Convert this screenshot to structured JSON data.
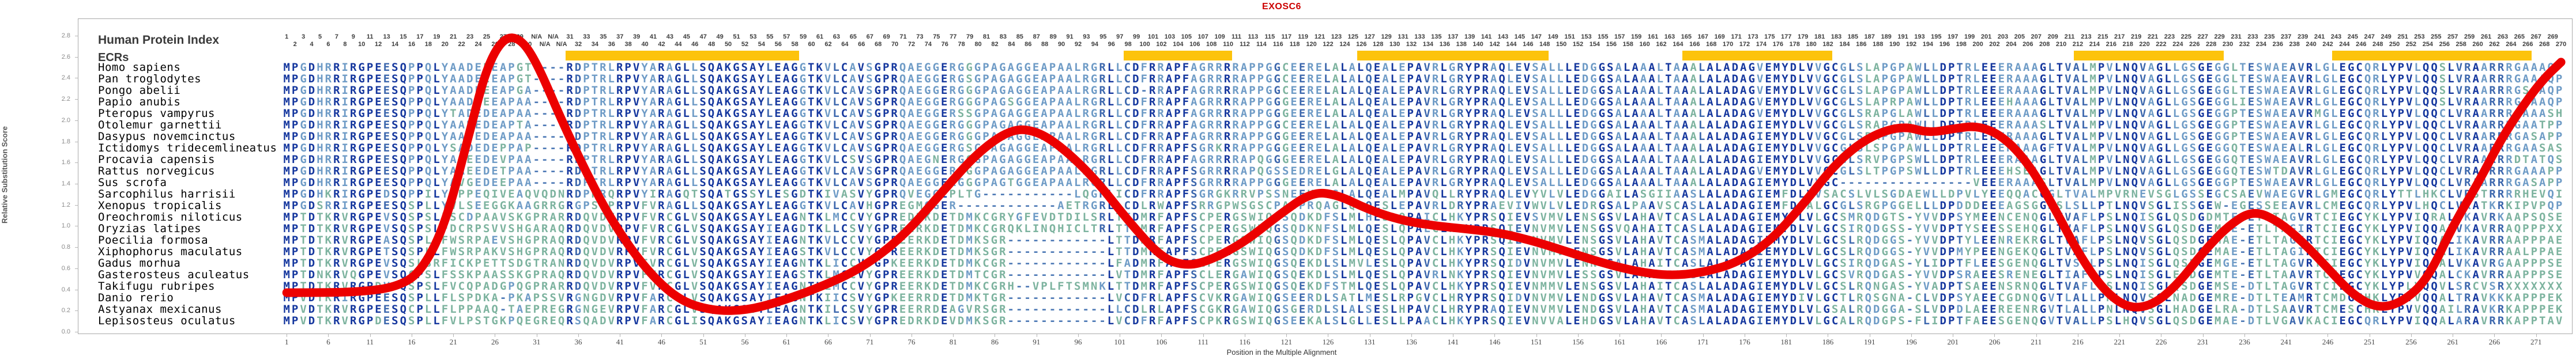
{
  "title": "EXOSC6",
  "header": {
    "panel_label": "Human Protein Index",
    "ecr_label": "ECRs"
  },
  "axes": {
    "y_label": "Relative Substitution Score",
    "y_ticks": [
      "0.0",
      "0.2",
      "0.4",
      "0.6",
      "0.8",
      "1.0",
      "1.2",
      "1.4",
      "1.6",
      "1.8",
      "2.0",
      "2.2",
      "2.4",
      "2.6",
      "2.8"
    ],
    "x_label": "Position in the Multiple Alignment",
    "x_ticks": [
      1,
      6,
      11,
      16,
      21,
      26,
      31,
      36,
      41,
      46,
      51,
      56,
      61,
      66,
      71,
      76,
      81,
      86,
      91,
      96,
      101,
      106,
      111,
      116,
      121,
      126,
      131,
      136,
      141,
      146,
      151,
      156,
      161,
      166,
      171,
      176,
      181,
      186,
      191,
      196,
      201,
      206,
      211,
      216,
      221,
      226,
      231,
      236,
      241,
      246,
      251,
      256,
      261,
      266,
      271
    ]
  },
  "colors": {
    "title": "#cc0000",
    "curve": "#ec0000",
    "ecr": "#fdc30b",
    "seq_dark": "#15379e",
    "seq_mid": "#3c67ad",
    "seq_light": "#6e9bc6",
    "seq_green": "#7db39f"
  },
  "alignment": {
    "num_columns": 274,
    "human_gap_columns": [
      31,
      32,
      33,
      34
    ],
    "column_label_rule": {
      "first": 1,
      "na_after": 30,
      "na_count": 4,
      "last": 270
    },
    "ecr_segments": [
      [
        35,
        62
      ],
      [
        102,
        114
      ],
      [
        130,
        152
      ],
      [
        169,
        186
      ],
      [
        216,
        233
      ],
      [
        247,
        270
      ]
    ],
    "rows": [
      {
        "species": "Homo sapiens",
        "seq": "MPGDHRRIRGPEESQPPQLYAADEEEAPGT----RDPTRLRPVYARAGLLSQAKGSAYLEAGGTKVLCAVSGPRQAEGGERGGGPAGAGGEAPAALRGRLLCDFRRAPFAGRRRRAPPGGCEERELALALQEALEPAVRLGRYPRAQLEVSALLLEDGGSALAAALTAAALALADAGVEMYDLVVGCGLSLAPGPAWLLDPTRLEEERAAAGLTVALMPVLNQVAGLLGSGEGGLTESWAEAVRLGLEGCQRLYPVLQQSLVRAARRRGAAAQP"
      },
      {
        "species": "Pan troglodytes",
        "seq": "MPGDHRRIRGPEESQPPQLYAADEEEAPGT----RDPTRLRPVYARAGLLSQAKGSAYLEAGGTKVLCAVSGPRQAEGGERGSGPAGAGGEAPAALRGRLLCDFRRAPFAGRRRRAPPGGCEERELALALQEALEPAVRLGRYPRAQLEVSALLLEDGGSALAAALTAAALALADAGVEMYDLVVGCGLSLAPGPAWLLDPTRLEEERAAAGLTVALMPVLNQVAGLLGSGEGGLTESWAEAVRLGLEGCQRLYPVLQQSLVRAARRRGAAAQP"
      },
      {
        "species": "Pongo abelii",
        "seq": "MPGDHRRIRGPEESQPPQLYAADEEEAPGA----RDPTRLRPVYARAGLLSQAKGSAYLEAGGTKVLCAVSGPRQAEGGERGGGPAGAGGEAPAALRGRLLCD-RRAPFAGRRRRAPPGGCEERELALALQEALEPAVRLGRYPRAQLEVSALLLEDGGSALAAALTAAALALADAGVEMYDLVVGCGLSLAPGPAWLLDPTRLEEERAAAGLTVALMPVLNQVAGLLGSGEGGLTESWAEAVRLGLEGCQRLYPVLQQSLVRAARRRGSAAQP"
      },
      {
        "species": "Papio anubis",
        "seq": "MPGDHRRIRGPEESQPPQLYAADEEEAPAA----RDPTRLRPVYARAGLLSQAKGSAYLEAGGTKVLCAVSGPRQAEGGERGGGPAGSGGEAPAALRGRLLCDFRRAPFAGRRRRAPPGGGEERELALALQEALEPAVRLGRYPRAQLEVSALLLEDGGSALAAALTAAALALADAGVEMYDLVVGCGLSLAPRPAWLLDPTRLEEEHAAAGLTVALMPVLNQVAGLLGSGEGGLIESWAEAVRLGLEGCQRLYPVLQQSLVRAARRRGAAAQP"
      },
      {
        "species": "Pteropus vampyrus",
        "seq": "MPGDHRRIRGPEESQPPQLYTADEDEAPAA----RDPTRLRPVYARAGLLSQAKGSAYLEAGGTKVLCAVSGPRQAEGGERSSGPAGAGGEAPAALRGRLLCDFRRAPFAGRRRRAPPGGGEERELALALQEALEPAVRLGRYPRAQLEVSALLLEDGGSALAAALTAAALALADAGVEMYDLVVGCGLSRAPGLAWLLDPTRLEEERAAAGLTVALMPVLNQVAGLLGSGEGGPTESWAEAVRMGLEGCQRLYPVLQQCLVRAARRRGAAASH"
      },
      {
        "species": "Otolemur garnettii",
        "seq": "MPGDHRRIRGPEESQPPQLYAADEDEAPTA----RDPTRLRPVYARAGLLSQAKGSAYLEAGGTKVLCAVSGPRQAEGGERGGGPAGAGGEAPAALRGRLLCDFRRAPFAGRRRRAPPGGCEERELALALQEALEPAVRLGRYPRAQLEVSALLLEDGGSALAAALTAAALALADAGIEMYDLVVGCGLSRAPGPAWLLDPTRLEEERAAASLTVALMPVLNQVAGLLGSGEGGPTESWAEAVRLGLEGCQRLYPVLQQCLVRAARRRGAATPP"
      },
      {
        "species": "Dasypus novemcinctus",
        "seq": "MPGDHRRIRGPEESQPPQLYAADEDEAPAA----RDPTRLRPVYARAGLLSQAKGSAYLEAGGTKVLCAVSGPRQAEGGERGGGPAGAGGEAPAALRGRLLCDFRRAPFAGRRRRAPPGGGEERELALALQEALEPAVRLGRYPRAQLEVSALLLEDGGSALAAALTAAALALADAGIEMYDLVVGCGLSRAPGPAWLLDPTRLEEERAAAGLTVALMPVLNQVAGLLGSGEGGPTESWAEAVRLGLEGCQRLYPVLQQCLVRAARRRGASAPP"
      },
      {
        "species": "Ictidomys tridecemlineatus",
        "seq": "MPGDHRRIRGPEESQPPQLYSADEDEPPAP----RDPTRLRPVYARAGLLSQAKGSAYLEAGGTKVLCAVSGPRQAEGGERGSGPAGAGGEAPAALRGRLLCDFRRAPFSGRKRRAPPGGGEERELALALQEALEPAVRLGRYPRAQLEVSALLLEDGGSALAAALTAAALALADAGIEMYDLVVGCGLSLSPGPAWLLDPTRLEEERAAAGFTVALMPVLNQVAGLLGSGEGGQTESWAEALRLGLEGCQRLYPVLQQCLVRAARRRGAASAS"
      },
      {
        "species": "Procavia capensis",
        "seq": "MPGDHRRIRGPEESQPPQLYAAEEDEVPAA----RDPTRLRPVYARAGLLSQAKGSAYLEAGGTKVLCSVSGPRQAEGNERGGGPAGAGGEAPAALRGRLLCDFRRAPFAGRRRRAPQGGGEERELALALQEALEPAVRLGRYPRAQLEVSALLLEDGGSALAAALTAAALALADAGIEMYDLVVGCGLSRVPGPSWLLDPTRLEEERAAAGLTVALMPVLNQVAGLLGSGEGGQTESWAEAVRLGLEGCQRLYPVLQQCLVRAARRRDTATQS"
      },
      {
        "species": "Rattus norvegicus",
        "seq": "MPGDHRRIRGPEESQPPQLYAAEEDETPAA----RDPTRLRPVYARAGLLSQAKGSAYLEAGGTKVLCAVSGPRQAEGGERGGGPAGAGGEAPAALRGRLLCDFRRAPFSGRRRRAPQGSSEDRELGLALQEALEPAVRLGRYPRAQLEVSALLLEDGGSALAAALTAAALALADAGVEMYDLVVGCGLSLTPGPSWLLDPTRLEEEHSEAGLTVALMPVLNQVAGLLGSGEGGQTESWTDAVRLGLEGCQRLYPVLQQCLVRAARRRGAAAPP"
      },
      {
        "species": "Sus scrofa",
        "seq": "MPGDHRRIRGPEESQPPQLYAVGEDEEPAA----RDPTRLRPVYARAGLLSQAKGSAYLEAGGTKVLCAVSGPRQAEGGERGGGPAGTGGEAPAALRGRLLCDFRRAPFSGRRRRAPPGGGEERELALALQEALEPAVRLGRYPRAQLEVSALLLEDGGSALAAALTAAALALADAGIEMYDLVVGC----------------VEEERAAASLTVALMPVLNQVAGLLGSGEGGPTESWAEAVRLGLEGCQRLYPVLQQCLVRAARRRGASAPP"
      },
      {
        "species": "Sarcophilus harrisii",
        "seq": "MPGDHKRIRGPEDSQPPILYAPPEQIVEAQVQDNRDPRRQRPVYIRAGQTSQATGSSYLESGDTKIVASVYGPRQVEGGEPLTG-----------LQGRLICDFRRAPFSGRGKRRVPSSNEEKEMSLALQEALMPAVQLLRYPRAQLEVYVLVLEDGGAILASGIIAASLALADAGIEMFDLVVSACSLVLSGDAEWLLDPVLYEEQQACGGLTVALMPVRNEVSGLGSSEGCSAEVWAEGVRLGMEGCQRLYTTLHKCLVRSTRRRRHEVQI"
      },
      {
        "species": "Xenopus tropicalis",
        "seq": "MPGDSRRIRGPEESQSPLLYVLSEEGGKAAGRRGRGPSEPRPVFVRAGLLSQAKGSAYLEAGGTKVLCAVHGPREGMGGER------------AETRGRLLCDLRWAPFSRRGPWSGSCPASPRQAGLQLQESLEPAVRLDRYPRAEVIVWVLVLEDRGSALPAAVSCASLALADAGIEMFDLALGCGLSRGPGGELLLDPDDDEEEAGSGGMSLSLLPTLNQVSGLISSGEW-EGESSEEAVRLCMEGCQRLYPVLHQCLVKATKRKIPVPQP"
      },
      {
        "species": "Oreochromis niloticus",
        "seq": "MPTDTKRVRGPEVSQSPSLFSCDPAAVSKGPRARRDQVDVRPVFVRCGLVSQAKGSAYLEAGNTKLMCCVYGPREDRKDETDMKCGRYGFEVDTDILSRLTTDMRFAPFSCPERGSWIQGSQDKDFSLMLHESLQPAICLHKYPRSQIEVSVMVLENSGSVLAHAVTCASLALADAGIEMYDLVLGCSMRQDGTS-YVVDPSYMEENCENQGLTVAFLPSLNQISGLQSDGDMTE-ETLTAGVRTCIEGCYKLYPVIQRALTKAVRKAAPSQSE"
      },
      {
        "species": "Oryzias latipes",
        "seq": "MPTDTKRVRGPEVSQSPSLFDCRPSVVSHGARAQRDQVDVRPVFVRCGLVSQAKGSAYIEAGDTKLLCSVYGPREERKDETDMKCGRQKLINQHICLTRLTTDMRFAPFSCPERGSWIQGSQDKNFSLMLQESLQPALCLHKYPRSQIEVNVMVLENSGSVQAHAITCASLALADAGIEMYDLVLGCSIRQDGSS-YVVDPTYSEESSEHQGLTVAFLPSLNQVSGLQSDGEMAE-ETLTAGIRTCIEGCYKLYPVIQQALVKAVRRAQPPPXX"
      },
      {
        "species": "Poecilia formosa",
        "seq": "MPTDTKRVRGPEASQSPLLFWSRPAEVSHGPRAQRDQVDVRPVFVRCGLVSQAKGSAYIEAGNTKVLCCVYGPREERKDETDMKSGR------------LTTDMRFAPFSCPERGSWIQGSQDKDFSLMLQESLQPAVCLHKYPRSQIEVNVMVLENSGSVLAHAVTCASMALADAGIEMYDLVLGCSLRQDGGS-YVVDPTYLEENREKRGLTVAFLPSLNQVSGLQSDGEMAE-ETLTAGIRTCIEGCYKLYPVIQQALIKAVRRAAPPPAE"
      },
      {
        "species": "Xiphophorus maculatus",
        "seq": "MPTDTKRVRGPETSQSPLLFWSRPAKVSHGPRAQRDQVDVRPVFVRCGLVSQAKGSAYIEAGSTKVLCCVYGPREERKDETDMKSGR------------LTTDMRFAPFSCPERGSWIQGSQDKDFSLMLQESLQPAVCLHKYPRSQIEVNVMVLENSGSVLAHAVTCASMALADAGIEMYDLVLGCSLRQDGGS-YVVDPMYPEENGEKQGLTVAFLPSLNQVSGLQSDGEMAE-ETLTAGIRTCIEGCYKLYPVIQQALIKAVRRAALPPAE"
      },
      {
        "species": "Gadus morhua",
        "seq": "MPTDTKRVRGPEVSQSLSRFICKPETTSDGTRANRDQVDVRPVFVRCGLVSQAKGSAYIEAGNTKLICCVYGPKEERKDETDMKCGR------------LFADMRFAPFSCPERGSWIQGSQEKDLSLMVLESLQPAVCLHKYPRSQIDVNVMVLENNGSALAHAITCASLALADAGIEMYDLVLGCSIRQDGAS-YLIDPTFLEESGENQGLTVSFLPSLNQISGLQSDGEMGE-ETLTAGVRTCIEGCYKLYPVIQQALVKAVRGAAPPPSE"
      },
      {
        "species": "Gasterosteus aculeatus",
        "seq": "MPTDNKRVQGPEVSQCPSLFSSKPAASSKGPRAQRDQVDVRPVFVRCGLVSQAKGSAYIEAGSTKLMCCVYGPREERKDETDMTCGR------------LVTDMRFAPFSCLERGAWIQGSQEKDLSLMLQESLQPAVRLNKYPRSQIEVNVMVLESSGSVLAHAVTCASLALADAGIEMYDLVLGCSVRQDGAS-YVVDPSRAEESRENEGLTIAFLPSLNQISGLESDGEMTE-ETLTAAVRTCIEGCYKLYPVVQQALCKAVRRAAPPPSE"
      },
      {
        "species": "Takifugu rubripes",
        "seq": "MPTDTKRVRGPDVSQSPSLFVCQPADGPQGPRARRDQVDVRPVFVRCGLVSQAKGSAYIEAGNTKLMCCVYGPREERKDETDMKCGRH--VPLFTSMNKLTTDMRFAPFSCPERGSWIQGSQEKDFSTMLQESLQPAVCLHKYPRSQIEVNMMVLENSGSVLAHAITCASLALADAGIEMYDLVLGCSLRQNGAS-YVADPTSAEENSRNQGLTVAFLPSLNQISGLQSDGEMSE-DTLTAGVRTCIEGCYKLYPLVQQVLSRCVSRXXXXXXX"
      },
      {
        "species": "Danio rerio",
        "seq": "MPVDTKRIRGPEESQSPLLFLSPDKA-PKAPSSVRGNGDVRPVFARCGLVSQAKGSAYIEAGNTKIICSVYGPKEERRDETDMKTGR------------LVCDFRLAPFSCVKRGAWIQGSEERDLSATLMESLRPGVCLHRYPRSQIDVNVMVLENDGSVLAHAVTCASMALADAGIEMYDIVLGCTLRQSGNA-CLVDPSYAEECGDNQGVTLALLPNLNQVSGLNADGEMRE-DTLTEAMRTCMDGCHKLYPVVQQALTRAVKKKAPPPEK"
      },
      {
        "species": "Astyanax mexicanus",
        "seq": "MPVDTKRVRGPEESQCPLLFLPPAAQ-TAEPREGRGNGEVRPVFARCGLVSQAKGSSYLEAGNTKILCSVYGPREERRDEAGVRSGR------------LLCDLRLAPFSCGKRGAWIQGSGERDLSLALSESLHPAVCLHRYPRAQIEVNVMVLENDGSVLAHAVTCASMALADAGIEMYDLVLGSALRQDGGA-SLVDPDLAEEREENRGVTLALLPNLNQVSGLHADGELRA-DTLSAAVRTCMESCHKLYPVVQQAILRAVKRKAPPPEK"
      },
      {
        "species": "Lepisosteus oculatus",
        "seq": "MPVDTKRVRGPDESQSPLLFVLPSTGKPQEGREQRSQADVRPVFARCGLISQAKGSAYIEAGNTKLICSVYGPREDRKDEVDMKSGR------------LVCDFRFAPFSCPKRGSWIQGSEEKALSLGLLESLLPAACLHKYPRSQIEVNVVALEHDGSVLAHAVTCASLALADAGIEMYDLVLGCALRQDGPS-FLIDPTFAEESGENQGVTVALLPSLHQVSGLQSDGEMAE-DTLVGAVKACIEGCQRLYPVIQQALARAVRRKAPPTAV"
      }
    ]
  },
  "chart_data": {
    "type": "line",
    "title": "EXOSC6",
    "xlabel": "Position in the Multiple Alignment",
    "ylabel": "Relative Substitution Score",
    "xlim": [
      1,
      274
    ],
    "ylim": [
      0.0,
      3.0
    ],
    "grid": false,
    "legend": "none",
    "line_color": "#ec0000",
    "series": [
      {
        "name": "Relative Substitution Score",
        "points": [
          [
            1,
            0.37
          ],
          [
            6,
            0.37
          ],
          [
            10,
            0.38
          ],
          [
            14,
            0.42
          ],
          [
            17,
            0.55
          ],
          [
            20,
            1.0
          ],
          [
            23,
            1.9
          ],
          [
            25,
            2.5
          ],
          [
            27,
            2.78
          ],
          [
            29,
            2.78
          ],
          [
            31,
            2.55
          ],
          [
            34,
            2.0
          ],
          [
            37,
            1.5
          ],
          [
            40,
            1.05
          ],
          [
            44,
            0.6
          ],
          [
            48,
            0.3
          ],
          [
            52,
            0.2
          ],
          [
            56,
            0.2
          ],
          [
            60,
            0.28
          ],
          [
            65,
            0.42
          ],
          [
            70,
            0.6
          ],
          [
            75,
            0.9
          ],
          [
            80,
            1.35
          ],
          [
            84,
            1.7
          ],
          [
            88,
            1.92
          ],
          [
            91,
            1.9
          ],
          [
            94,
            1.75
          ],
          [
            98,
            1.45
          ],
          [
            102,
            1.05
          ],
          [
            106,
            0.7
          ],
          [
            109,
            0.62
          ],
          [
            112,
            0.68
          ],
          [
            116,
            0.85
          ],
          [
            120,
            1.1
          ],
          [
            124,
            1.32
          ],
          [
            127,
            1.3
          ],
          [
            131,
            1.15
          ],
          [
            135,
            1.05
          ],
          [
            139,
            1.0
          ],
          [
            143,
            0.97
          ],
          [
            147,
            0.93
          ],
          [
            151,
            0.85
          ],
          [
            155,
            0.75
          ],
          [
            159,
            0.65
          ],
          [
            163,
            0.57
          ],
          [
            167,
            0.53
          ],
          [
            171,
            0.56
          ],
          [
            175,
            0.65
          ],
          [
            179,
            0.85
          ],
          [
            183,
            1.2
          ],
          [
            187,
            1.6
          ],
          [
            191,
            1.85
          ],
          [
            195,
            1.95
          ],
          [
            198,
            1.88
          ],
          [
            201,
            1.92
          ],
          [
            204,
            1.95
          ],
          [
            207,
            1.85
          ],
          [
            210,
            1.6
          ],
          [
            213,
            1.2
          ],
          [
            216,
            0.75
          ],
          [
            219,
            0.4
          ],
          [
            222,
            0.22
          ],
          [
            225,
            0.25
          ],
          [
            228,
            0.45
          ],
          [
            231,
            0.75
          ],
          [
            234,
            1.0
          ],
          [
            237,
            1.15
          ],
          [
            240,
            1.05
          ],
          [
            243,
            0.85
          ],
          [
            246,
            0.6
          ],
          [
            249,
            0.35
          ],
          [
            252,
            0.22
          ],
          [
            255,
            0.28
          ],
          [
            258,
            0.5
          ],
          [
            261,
            1.0
          ],
          [
            264,
            1.4
          ],
          [
            267,
            1.85
          ],
          [
            270,
            2.2
          ],
          [
            272,
            2.4
          ],
          [
            274,
            2.55
          ]
        ]
      }
    ]
  }
}
